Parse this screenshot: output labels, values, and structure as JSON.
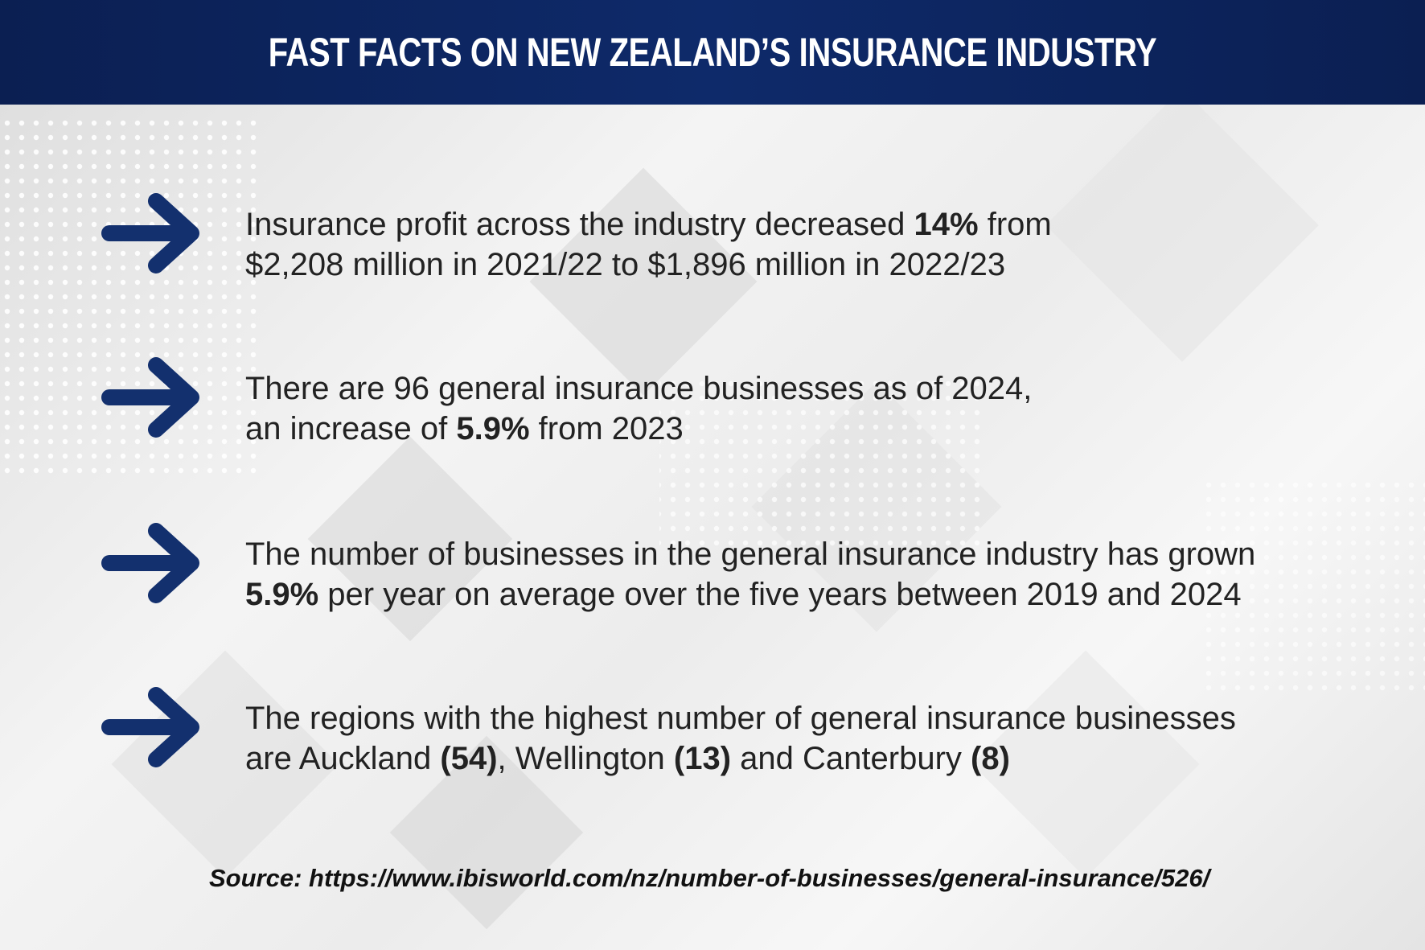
{
  "header": {
    "title": "FAST FACTS ON NEW ZEALAND’S INSURANCE INDUSTRY"
  },
  "facts": [
    {
      "lines": [
        [
          {
            "text": "Insurance profit across the industry decreased ",
            "bold": false
          },
          {
            "text": "14%",
            "bold": true
          },
          {
            "text": " from",
            "bold": false
          }
        ],
        [
          {
            "text": "$2,208 million in 2021/22 to $1,896 million in 2022/23",
            "bold": false
          }
        ]
      ]
    },
    {
      "lines": [
        [
          {
            "text": "There are 96 general insurance businesses as of 2024,",
            "bold": false
          }
        ],
        [
          {
            "text": "an increase of ",
            "bold": false
          },
          {
            "text": "5.9%",
            "bold": true
          },
          {
            "text": " from 2023",
            "bold": false
          }
        ]
      ]
    },
    {
      "lines": [
        [
          {
            "text": "The number of businesses in the general insurance industry has grown",
            "bold": false
          }
        ],
        [
          {
            "text": "5.9%",
            "bold": true
          },
          {
            "text": " per year on average over the five years between 2019 and 2024",
            "bold": false
          }
        ]
      ]
    },
    {
      "lines": [
        [
          {
            "text": "The regions with the highest number of general insurance businesses",
            "bold": false
          }
        ],
        [
          {
            "text": "are Auckland ",
            "bold": false
          },
          {
            "text": "(54)",
            "bold": true
          },
          {
            "text": ", Wellington ",
            "bold": false
          },
          {
            "text": "(13)",
            "bold": true
          },
          {
            "text": " and Canterbury ",
            "bold": false
          },
          {
            "text": "(8)",
            "bold": true
          }
        ]
      ]
    }
  ],
  "source": "Source: https://www.ibisworld.com/nz/number-of-businesses/general-insurance/526/"
}
